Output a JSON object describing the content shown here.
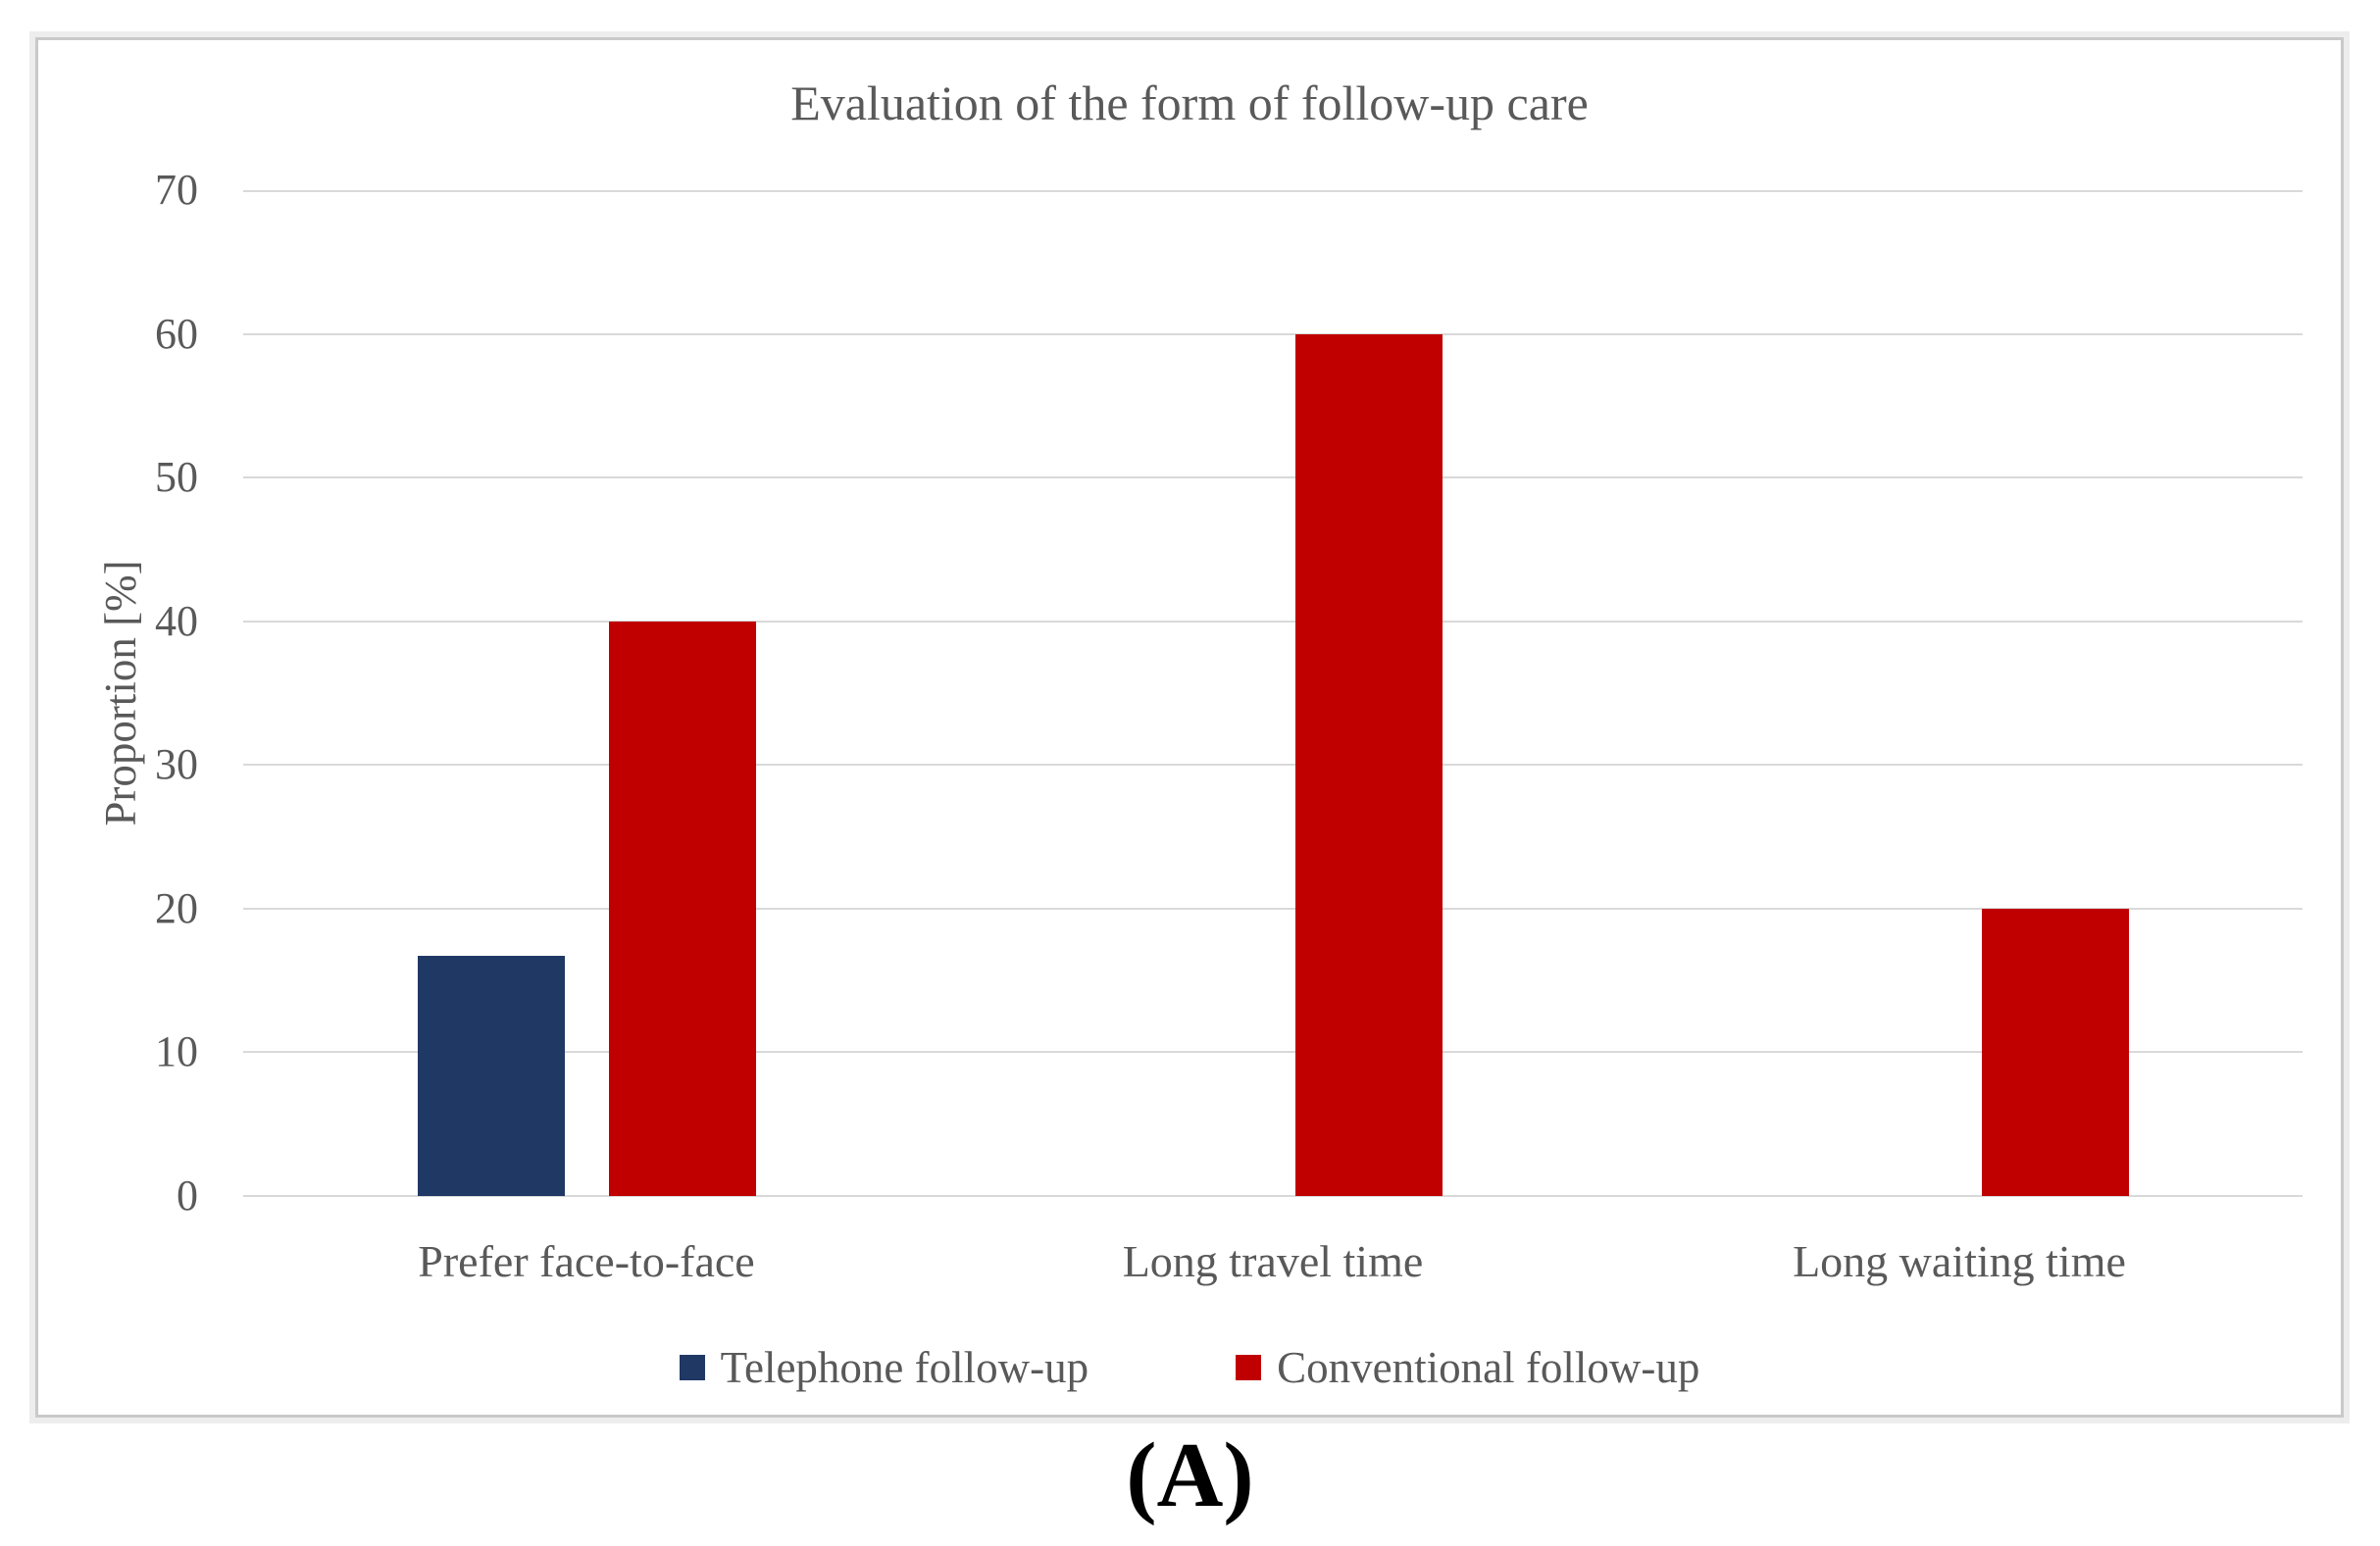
{
  "figure": {
    "caption": "(A)"
  },
  "colors": {
    "grid": "#D9D9D9",
    "text": "#595959",
    "frame_border": "#C9C9C9",
    "frame_halo": "#EDEDED",
    "caption": "#000000",
    "background": "#FFFFFF"
  },
  "chart_data": {
    "type": "bar",
    "title": "Evaluation of the form of follow-up care",
    "xlabel": "",
    "ylabel": "Proportion [%]",
    "categories": [
      "Prefer face-to-face",
      "Long travel time",
      "Long waiting time"
    ],
    "series": [
      {
        "name": "Telephone follow-up",
        "color": "#1F3864",
        "values": [
          16.7,
          0,
          0
        ]
      },
      {
        "name": "Conventional follow-up",
        "color": "#C00000",
        "values": [
          40,
          60,
          20
        ]
      }
    ],
    "ylim": [
      0,
      70
    ],
    "ytick_interval": 10,
    "grid": "horizontal",
    "legend_position": "bottom"
  }
}
